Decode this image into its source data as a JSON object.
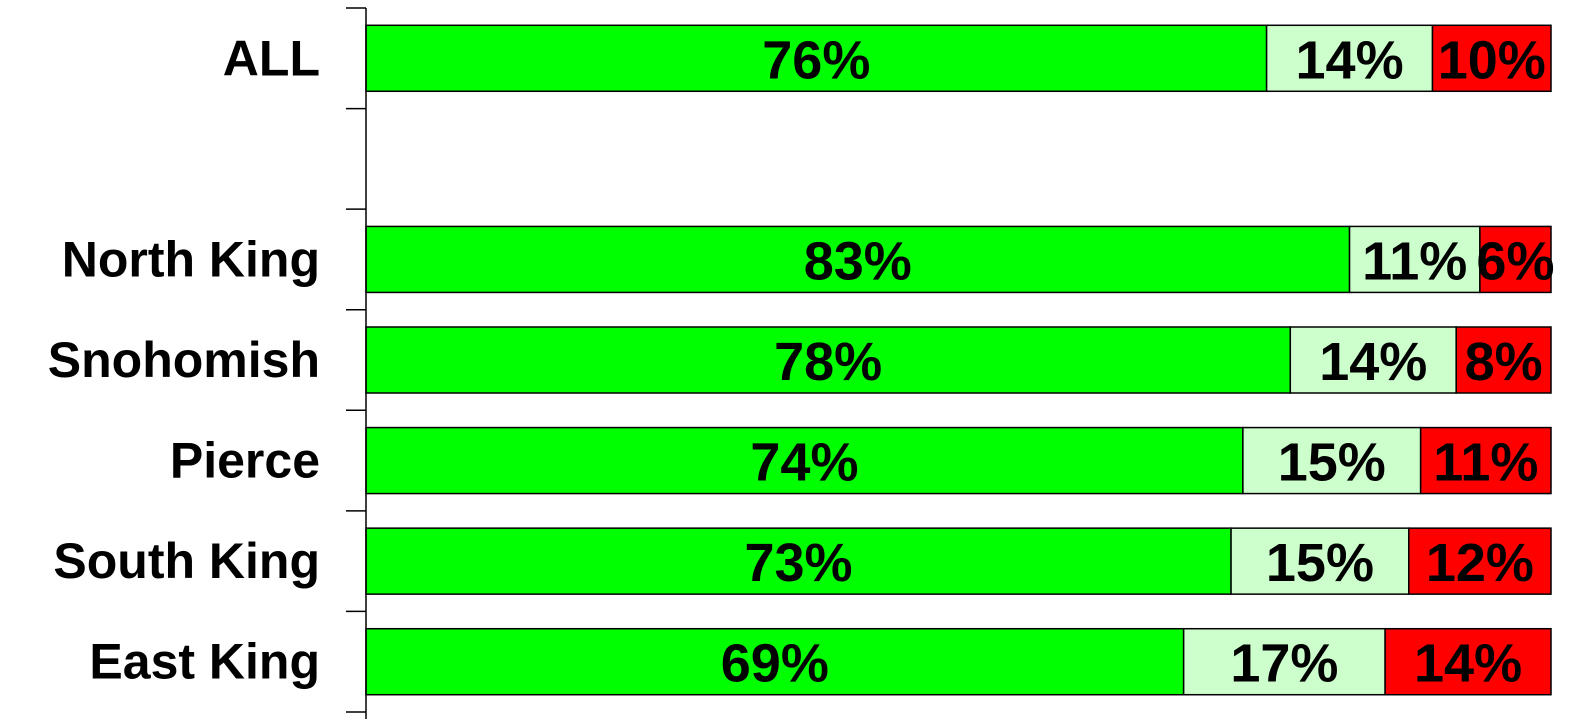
{
  "chart_data": {
    "type": "stacked_barh",
    "categories": [
      "ALL",
      null,
      "North King",
      "Snohomish",
      "Pierce",
      "South King",
      "East King"
    ],
    "xlim": [
      0,
      100
    ],
    "series": [
      {
        "color": "#00ff00",
        "values": [
          76,
          null,
          83,
          78,
          74,
          73,
          69
        ],
        "value_labels": [
          "76%",
          null,
          "83%",
          "78%",
          "74%",
          "73%",
          "69%"
        ]
      },
      {
        "color": "#ccffcc",
        "values": [
          14,
          null,
          11,
          14,
          15,
          15,
          17
        ],
        "value_labels": [
          "14%",
          null,
          "11%",
          "14%",
          "15%",
          "15%",
          "17%"
        ]
      },
      {
        "color": "#ff0000",
        "values": [
          10,
          null,
          6,
          8,
          11,
          12,
          14
        ],
        "value_labels": [
          "10%",
          null,
          "6%",
          "8%",
          "11%",
          "12%",
          "14%"
        ]
      }
    ]
  }
}
